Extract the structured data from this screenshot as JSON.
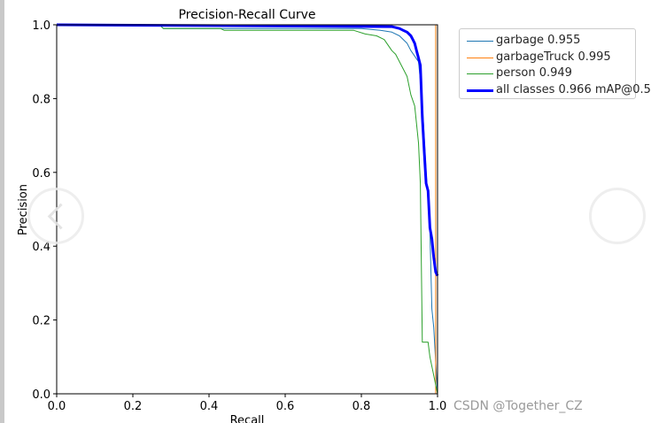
{
  "chart_data": {
    "type": "line",
    "title": "Precision-Recall Curve",
    "xlabel": "Recall",
    "ylabel": "Precision",
    "xlim": [
      0.0,
      1.0
    ],
    "ylim": [
      0.0,
      1.0
    ],
    "xticks": [
      "0.0",
      "0.2",
      "0.4",
      "0.6",
      "0.8",
      "1.0"
    ],
    "yticks": [
      "0.0",
      "0.2",
      "0.4",
      "0.6",
      "0.8",
      "1.0"
    ],
    "grid": false,
    "legend_position": "outside-upper-right",
    "series": [
      {
        "name": "garbage 0.955",
        "color": "#1f77b4",
        "width": 1,
        "x": [
          0.0,
          0.27,
          0.28,
          0.45,
          0.8,
          0.85,
          0.88,
          0.9,
          0.92,
          0.93,
          0.95,
          0.955,
          0.96,
          0.97,
          0.975,
          0.98,
          0.985,
          0.99,
          1.0
        ],
        "y": [
          1.0,
          1.0,
          0.99,
          0.99,
          0.99,
          0.985,
          0.98,
          0.97,
          0.95,
          0.93,
          0.9,
          0.85,
          0.79,
          0.6,
          0.52,
          0.44,
          0.23,
          0.18,
          0.0
        ]
      },
      {
        "name": "garbageTruck 0.995",
        "color": "#ff7f0e",
        "width": 1,
        "x": [
          0.0,
          0.88,
          0.995,
          0.995
        ],
        "y": [
          1.0,
          1.0,
          1.0,
          0.0
        ]
      },
      {
        "name": "person 0.949",
        "color": "#2ca02c",
        "width": 1,
        "x": [
          0.0,
          0.27,
          0.28,
          0.43,
          0.44,
          0.78,
          0.81,
          0.84,
          0.86,
          0.88,
          0.89,
          0.91,
          0.92,
          0.93,
          0.94,
          0.95,
          0.955,
          0.96,
          0.965,
          0.97,
          0.975,
          0.98,
          1.0
        ],
        "y": [
          1.0,
          1.0,
          0.99,
          0.99,
          0.985,
          0.985,
          0.975,
          0.97,
          0.96,
          0.93,
          0.92,
          0.88,
          0.86,
          0.81,
          0.78,
          0.68,
          0.57,
          0.14,
          0.14,
          0.14,
          0.14,
          0.1,
          0.0
        ]
      },
      {
        "name": "all classes 0.966 mAP@0.5",
        "color": "#0000ff",
        "width": 3,
        "x": [
          0.0,
          0.88,
          0.9,
          0.91,
          0.92,
          0.93,
          0.935,
          0.94,
          0.945,
          0.95,
          0.955,
          0.96,
          0.965,
          0.97,
          0.975,
          0.98,
          0.985,
          0.99,
          0.995,
          1.0
        ],
        "y": [
          1.0,
          0.995,
          0.99,
          0.985,
          0.98,
          0.97,
          0.96,
          0.95,
          0.93,
          0.91,
          0.89,
          0.75,
          0.66,
          0.57,
          0.55,
          0.45,
          0.42,
          0.37,
          0.33,
          0.32
        ]
      }
    ]
  },
  "watermark": "CSDN @Together_CZ"
}
